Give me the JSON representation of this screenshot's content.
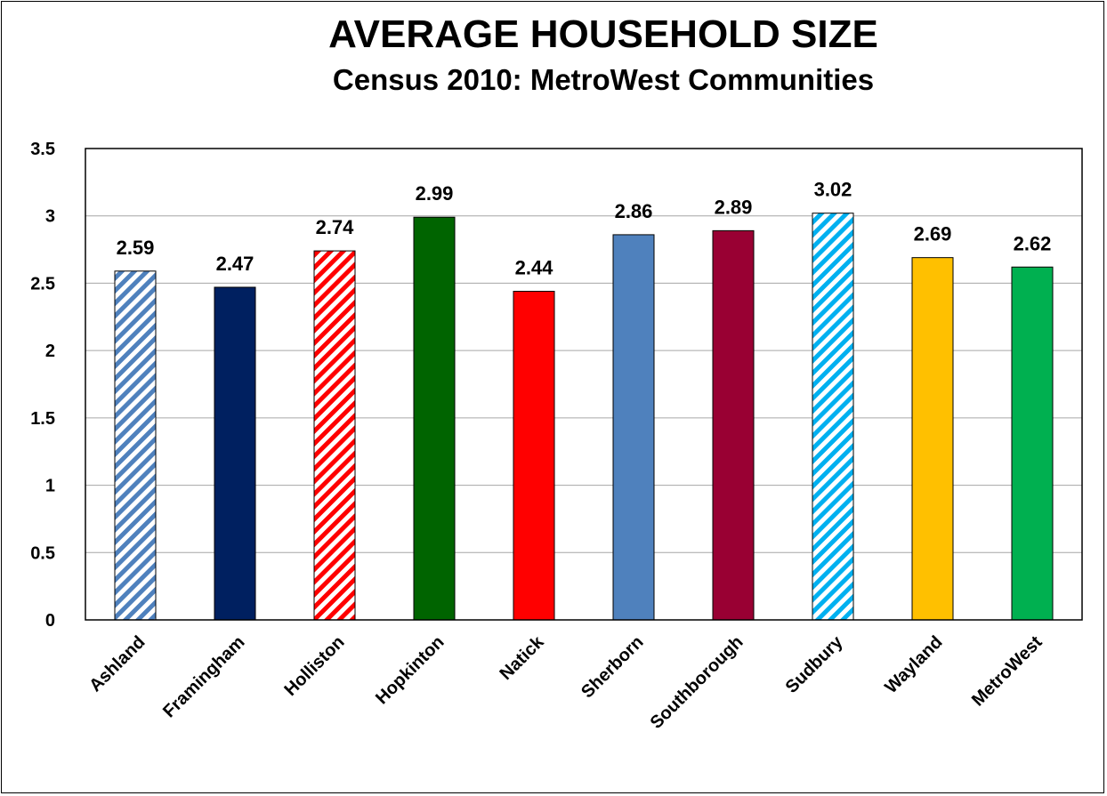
{
  "chart_data": {
    "type": "bar",
    "title": "AVERAGE HOUSEHOLD SIZE",
    "subtitle": "Census 2010: MetroWest Communities",
    "xlabel": "",
    "ylabel": "",
    "ylim": [
      0,
      3.5
    ],
    "yticks": [
      "0",
      "0.5",
      "1",
      "1.5",
      "2",
      "2.5",
      "3",
      "3.5"
    ],
    "grid": true,
    "legend": "none",
    "categories": [
      "Ashland",
      "Framingham",
      "Holliston",
      "Hopkinton",
      "Natick",
      "Sherborn",
      "Southborough",
      "Sudbury",
      "Wayland",
      "MetroWest"
    ],
    "values": [
      2.59,
      2.47,
      2.74,
      2.99,
      2.44,
      2.86,
      2.89,
      3.02,
      2.69,
      2.62
    ],
    "data_labels": [
      "2.59",
      "2.47",
      "2.74",
      "2.99",
      "2.44",
      "2.86",
      "2.89",
      "3.02",
      "2.69",
      "2.62"
    ],
    "bar_styles": [
      {
        "color": "#4f81bd",
        "pattern": "diagonal-stripes"
      },
      {
        "color": "#002060",
        "pattern": "solid"
      },
      {
        "color": "#ff0000",
        "pattern": "diagonal-stripes"
      },
      {
        "color": "#006400",
        "pattern": "solid"
      },
      {
        "color": "#ff0000",
        "pattern": "solid"
      },
      {
        "color": "#4f81bd",
        "pattern": "solid"
      },
      {
        "color": "#990033",
        "pattern": "solid"
      },
      {
        "color": "#00b0f0",
        "pattern": "diagonal-stripes"
      },
      {
        "color": "#ffc000",
        "pattern": "solid"
      },
      {
        "color": "#00b050",
        "pattern": "solid"
      }
    ],
    "colors": {
      "gridline": "#a6a6a6",
      "axis": "#000000",
      "text": "#000000"
    }
  }
}
